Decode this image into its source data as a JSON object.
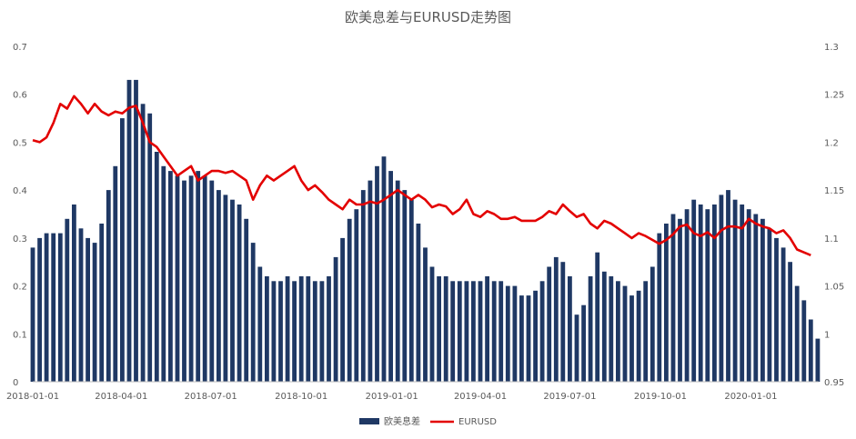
{
  "chart_data": {
    "type": "bar+line",
    "title": "欧美息差与EURUSD走势图",
    "x_axis": {
      "ticks": [
        "2018-01-01",
        "2018-04-01",
        "2018-07-01",
        "2018-10-01",
        "2019-01-01",
        "2019-04-01",
        "2019-07-01",
        "2019-10-01",
        "2020-01-01"
      ],
      "range": [
        "2018-01-01",
        "2020-03-10"
      ]
    },
    "y_left": {
      "range": [
        0,
        0.7
      ],
      "ticks": [
        "0",
        "0.1",
        "0.2",
        "0.3",
        "0.4",
        "0.5",
        "0.6",
        "0.7"
      ]
    },
    "y_right": {
      "range": [
        0.95,
        1.3
      ],
      "ticks": [
        "0.95",
        "1",
        "1.05",
        "1.1",
        "1.15",
        "1.2",
        "1.25",
        "1.3"
      ]
    },
    "grid": false,
    "legend_position": "bottom",
    "series": [
      {
        "name": "欧美息差",
        "type": "bar",
        "axis": "left",
        "color": "#1f3864",
        "points": [
          [
            "2018-01-01",
            0.28
          ],
          [
            "2018-01-08",
            0.3
          ],
          [
            "2018-01-15",
            0.31
          ],
          [
            "2018-01-22",
            0.31
          ],
          [
            "2018-01-29",
            0.31
          ],
          [
            "2018-02-05",
            0.34
          ],
          [
            "2018-02-12",
            0.37
          ],
          [
            "2018-02-19",
            0.32
          ],
          [
            "2018-02-26",
            0.3
          ],
          [
            "2018-03-05",
            0.29
          ],
          [
            "2018-03-12",
            0.33
          ],
          [
            "2018-03-19",
            0.4
          ],
          [
            "2018-03-26",
            0.45
          ],
          [
            "2018-04-02",
            0.55
          ],
          [
            "2018-04-09",
            0.63
          ],
          [
            "2018-04-16",
            0.63
          ],
          [
            "2018-04-23",
            0.58
          ],
          [
            "2018-04-30",
            0.56
          ],
          [
            "2018-05-07",
            0.48
          ],
          [
            "2018-05-14",
            0.45
          ],
          [
            "2018-05-21",
            0.44
          ],
          [
            "2018-05-28",
            0.43
          ],
          [
            "2018-06-04",
            0.42
          ],
          [
            "2018-06-11",
            0.43
          ],
          [
            "2018-06-18",
            0.44
          ],
          [
            "2018-06-25",
            0.43
          ],
          [
            "2018-07-02",
            0.42
          ],
          [
            "2018-07-09",
            0.4
          ],
          [
            "2018-07-16",
            0.39
          ],
          [
            "2018-07-23",
            0.38
          ],
          [
            "2018-07-30",
            0.37
          ],
          [
            "2018-08-06",
            0.34
          ],
          [
            "2018-08-13",
            0.29
          ],
          [
            "2018-08-20",
            0.24
          ],
          [
            "2018-08-27",
            0.22
          ],
          [
            "2018-09-03",
            0.21
          ],
          [
            "2018-09-10",
            0.21
          ],
          [
            "2018-09-17",
            0.22
          ],
          [
            "2018-09-24",
            0.21
          ],
          [
            "2018-10-01",
            0.22
          ],
          [
            "2018-10-08",
            0.22
          ],
          [
            "2018-10-15",
            0.21
          ],
          [
            "2018-10-22",
            0.21
          ],
          [
            "2018-10-29",
            0.22
          ],
          [
            "2018-11-05",
            0.26
          ],
          [
            "2018-11-12",
            0.3
          ],
          [
            "2018-11-19",
            0.34
          ],
          [
            "2018-11-26",
            0.36
          ],
          [
            "2018-12-03",
            0.4
          ],
          [
            "2018-12-10",
            0.42
          ],
          [
            "2018-12-17",
            0.45
          ],
          [
            "2018-12-24",
            0.47
          ],
          [
            "2018-12-31",
            0.44
          ],
          [
            "2019-01-07",
            0.42
          ],
          [
            "2019-01-14",
            0.4
          ],
          [
            "2019-01-21",
            0.38
          ],
          [
            "2019-01-28",
            0.33
          ],
          [
            "2019-02-04",
            0.28
          ],
          [
            "2019-02-11",
            0.24
          ],
          [
            "2019-02-18",
            0.22
          ],
          [
            "2019-02-25",
            0.22
          ],
          [
            "2019-03-04",
            0.21
          ],
          [
            "2019-03-11",
            0.21
          ],
          [
            "2019-03-18",
            0.21
          ],
          [
            "2019-03-25",
            0.21
          ],
          [
            "2019-04-01",
            0.21
          ],
          [
            "2019-04-08",
            0.22
          ],
          [
            "2019-04-15",
            0.21
          ],
          [
            "2019-04-22",
            0.21
          ],
          [
            "2019-04-29",
            0.2
          ],
          [
            "2019-05-06",
            0.2
          ],
          [
            "2019-05-13",
            0.18
          ],
          [
            "2019-05-20",
            0.18
          ],
          [
            "2019-05-27",
            0.19
          ],
          [
            "2019-06-03",
            0.21
          ],
          [
            "2019-06-10",
            0.24
          ],
          [
            "2019-06-17",
            0.26
          ],
          [
            "2019-06-24",
            0.25
          ],
          [
            "2019-07-01",
            0.22
          ],
          [
            "2019-07-08",
            0.14
          ],
          [
            "2019-07-15",
            0.16
          ],
          [
            "2019-07-22",
            0.22
          ],
          [
            "2019-07-29",
            0.27
          ],
          [
            "2019-08-05",
            0.23
          ],
          [
            "2019-08-12",
            0.22
          ],
          [
            "2019-08-19",
            0.21
          ],
          [
            "2019-08-26",
            0.2
          ],
          [
            "2019-09-02",
            0.18
          ],
          [
            "2019-09-09",
            0.19
          ],
          [
            "2019-09-16",
            0.21
          ],
          [
            "2019-09-23",
            0.24
          ],
          [
            "2019-09-30",
            0.31
          ],
          [
            "2019-10-07",
            0.33
          ],
          [
            "2019-10-14",
            0.35
          ],
          [
            "2019-10-21",
            0.34
          ],
          [
            "2019-10-28",
            0.36
          ],
          [
            "2019-11-04",
            0.38
          ],
          [
            "2019-11-11",
            0.37
          ],
          [
            "2019-11-18",
            0.36
          ],
          [
            "2019-11-25",
            0.37
          ],
          [
            "2019-12-02",
            0.39
          ],
          [
            "2019-12-09",
            0.4
          ],
          [
            "2019-12-16",
            0.38
          ],
          [
            "2019-12-23",
            0.37
          ],
          [
            "2019-12-30",
            0.36
          ],
          [
            "2020-01-06",
            0.35
          ],
          [
            "2020-01-13",
            0.34
          ],
          [
            "2020-01-20",
            0.32
          ],
          [
            "2020-01-27",
            0.3
          ],
          [
            "2020-02-03",
            0.28
          ],
          [
            "2020-02-10",
            0.25
          ],
          [
            "2020-02-17",
            0.2
          ],
          [
            "2020-02-24",
            0.17
          ],
          [
            "2020-03-02",
            0.13
          ],
          [
            "2020-03-09",
            0.09
          ]
        ]
      },
      {
        "name": "EURUSD",
        "type": "line",
        "axis": "right",
        "color": "#e30000",
        "points": [
          [
            "2018-01-01",
            1.202
          ],
          [
            "2018-01-08",
            1.2
          ],
          [
            "2018-01-15",
            1.205
          ],
          [
            "2018-01-22",
            1.22
          ],
          [
            "2018-01-29",
            1.24
          ],
          [
            "2018-02-05",
            1.235
          ],
          [
            "2018-02-12",
            1.248
          ],
          [
            "2018-02-19",
            1.24
          ],
          [
            "2018-02-26",
            1.23
          ],
          [
            "2018-03-05",
            1.24
          ],
          [
            "2018-03-12",
            1.232
          ],
          [
            "2018-03-19",
            1.228
          ],
          [
            "2018-03-26",
            1.232
          ],
          [
            "2018-04-02",
            1.23
          ],
          [
            "2018-04-09",
            1.236
          ],
          [
            "2018-04-16",
            1.238
          ],
          [
            "2018-04-23",
            1.22
          ],
          [
            "2018-04-30",
            1.2
          ],
          [
            "2018-05-07",
            1.195
          ],
          [
            "2018-05-14",
            1.185
          ],
          [
            "2018-05-21",
            1.175
          ],
          [
            "2018-05-28",
            1.165
          ],
          [
            "2018-06-04",
            1.17
          ],
          [
            "2018-06-11",
            1.175
          ],
          [
            "2018-06-18",
            1.16
          ],
          [
            "2018-06-25",
            1.165
          ],
          [
            "2018-07-02",
            1.17
          ],
          [
            "2018-07-09",
            1.17
          ],
          [
            "2018-07-16",
            1.168
          ],
          [
            "2018-07-23",
            1.17
          ],
          [
            "2018-07-30",
            1.165
          ],
          [
            "2018-08-06",
            1.16
          ],
          [
            "2018-08-13",
            1.14
          ],
          [
            "2018-08-20",
            1.155
          ],
          [
            "2018-08-27",
            1.165
          ],
          [
            "2018-09-03",
            1.16
          ],
          [
            "2018-09-10",
            1.165
          ],
          [
            "2018-09-17",
            1.17
          ],
          [
            "2018-09-24",
            1.175
          ],
          [
            "2018-10-01",
            1.16
          ],
          [
            "2018-10-08",
            1.15
          ],
          [
            "2018-10-15",
            1.155
          ],
          [
            "2018-10-22",
            1.148
          ],
          [
            "2018-10-29",
            1.14
          ],
          [
            "2018-11-05",
            1.135
          ],
          [
            "2018-11-12",
            1.13
          ],
          [
            "2018-11-19",
            1.14
          ],
          [
            "2018-11-26",
            1.135
          ],
          [
            "2018-12-03",
            1.135
          ],
          [
            "2018-12-10",
            1.138
          ],
          [
            "2018-12-17",
            1.136
          ],
          [
            "2018-12-24",
            1.14
          ],
          [
            "2018-12-31",
            1.145
          ],
          [
            "2019-01-07",
            1.15
          ],
          [
            "2019-01-14",
            1.145
          ],
          [
            "2019-01-21",
            1.14
          ],
          [
            "2019-01-28",
            1.145
          ],
          [
            "2019-02-04",
            1.14
          ],
          [
            "2019-02-11",
            1.132
          ],
          [
            "2019-02-18",
            1.135
          ],
          [
            "2019-02-25",
            1.133
          ],
          [
            "2019-03-04",
            1.125
          ],
          [
            "2019-03-11",
            1.13
          ],
          [
            "2019-03-18",
            1.14
          ],
          [
            "2019-03-25",
            1.125
          ],
          [
            "2019-04-01",
            1.122
          ],
          [
            "2019-04-08",
            1.128
          ],
          [
            "2019-04-15",
            1.125
          ],
          [
            "2019-04-22",
            1.12
          ],
          [
            "2019-04-29",
            1.12
          ],
          [
            "2019-05-06",
            1.122
          ],
          [
            "2019-05-13",
            1.118
          ],
          [
            "2019-05-20",
            1.118
          ],
          [
            "2019-05-27",
            1.118
          ],
          [
            "2019-06-03",
            1.122
          ],
          [
            "2019-06-10",
            1.128
          ],
          [
            "2019-06-17",
            1.125
          ],
          [
            "2019-06-24",
            1.135
          ],
          [
            "2019-07-01",
            1.128
          ],
          [
            "2019-07-08",
            1.122
          ],
          [
            "2019-07-15",
            1.125
          ],
          [
            "2019-07-22",
            1.115
          ],
          [
            "2019-07-29",
            1.11
          ],
          [
            "2019-08-05",
            1.118
          ],
          [
            "2019-08-12",
            1.115
          ],
          [
            "2019-08-19",
            1.11
          ],
          [
            "2019-08-26",
            1.105
          ],
          [
            "2019-09-02",
            1.1
          ],
          [
            "2019-09-09",
            1.105
          ],
          [
            "2019-09-16",
            1.102
          ],
          [
            "2019-09-23",
            1.098
          ],
          [
            "2019-09-30",
            1.094
          ],
          [
            "2019-10-07",
            1.098
          ],
          [
            "2019-10-14",
            1.104
          ],
          [
            "2019-10-21",
            1.112
          ],
          [
            "2019-10-28",
            1.114
          ],
          [
            "2019-11-04",
            1.105
          ],
          [
            "2019-11-11",
            1.102
          ],
          [
            "2019-11-18",
            1.106
          ],
          [
            "2019-11-25",
            1.1
          ],
          [
            "2019-12-02",
            1.108
          ],
          [
            "2019-12-09",
            1.112
          ],
          [
            "2019-12-16",
            1.112
          ],
          [
            "2019-12-23",
            1.11
          ],
          [
            "2019-12-30",
            1.12
          ],
          [
            "2020-01-06",
            1.115
          ],
          [
            "2020-01-13",
            1.112
          ],
          [
            "2020-01-20",
            1.11
          ],
          [
            "2020-01-27",
            1.105
          ],
          [
            "2020-02-03",
            1.108
          ],
          [
            "2020-02-10",
            1.1
          ],
          [
            "2020-02-17",
            1.088
          ],
          [
            "2020-02-24",
            1.085
          ],
          [
            "2020-03-02",
            1.082
          ]
        ]
      }
    ]
  }
}
